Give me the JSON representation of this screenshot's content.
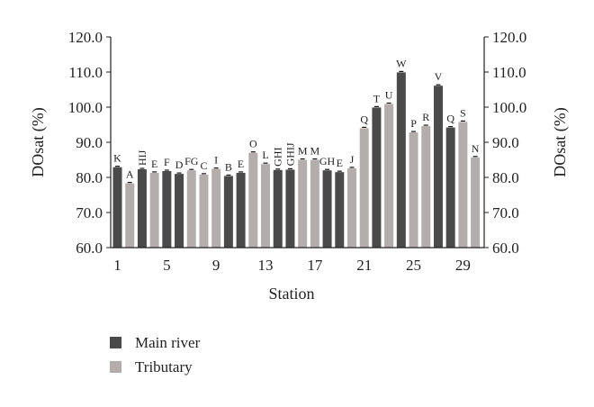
{
  "chart_data": {
    "type": "bar",
    "xlabel": "Station",
    "ylabel_left": "DOsat (%)",
    "ylabel_right": "DOsat (%)",
    "ylim": [
      60,
      120
    ],
    "yticks": [
      60,
      70,
      80,
      90,
      100,
      110,
      120
    ],
    "ytick_labels": [
      "60.0",
      "70.0",
      "80.0",
      "90.0",
      "100.0",
      "110.0",
      "120.0"
    ],
    "xtick_stations": [
      1,
      5,
      9,
      13,
      17,
      21,
      25,
      29
    ],
    "xtick_labels": [
      "1",
      "5",
      "9",
      "13",
      "17",
      "21",
      "25",
      "29"
    ],
    "grid": false,
    "legend_position": "bottom-left",
    "series": [
      {
        "name": "Main river",
        "color": "#4a4a4a"
      },
      {
        "name": "Tributary",
        "color": "#b3aeab"
      }
    ],
    "bars": [
      {
        "station": 1,
        "series": 0,
        "value": 82.9,
        "label": "K"
      },
      {
        "station": 2,
        "series": 1,
        "value": 78.3,
        "label": "A"
      },
      {
        "station": 3,
        "series": 0,
        "value": 82.3,
        "label": "HIJ"
      },
      {
        "station": 4,
        "series": 1,
        "value": 81.3,
        "label": "E"
      },
      {
        "station": 5,
        "series": 0,
        "value": 81.8,
        "label": "F"
      },
      {
        "station": 6,
        "series": 0,
        "value": 81.0,
        "label": "D"
      },
      {
        "station": 7,
        "series": 1,
        "value": 82.0,
        "label": "FG"
      },
      {
        "station": 8,
        "series": 1,
        "value": 80.8,
        "label": "C"
      },
      {
        "station": 9,
        "series": 1,
        "value": 82.4,
        "label": "I"
      },
      {
        "station": 10,
        "series": 0,
        "value": 80.4,
        "label": "B"
      },
      {
        "station": 11,
        "series": 0,
        "value": 81.3,
        "label": "E"
      },
      {
        "station": 12,
        "series": 1,
        "value": 87.0,
        "label": "O"
      },
      {
        "station": 13,
        "series": 1,
        "value": 83.8,
        "label": "L"
      },
      {
        "station": 14,
        "series": 0,
        "value": 82.1,
        "label": "GHI"
      },
      {
        "station": 15,
        "series": 0,
        "value": 82.2,
        "label": "GHIJ"
      },
      {
        "station": 16,
        "series": 1,
        "value": 85.0,
        "label": "M"
      },
      {
        "station": 17,
        "series": 1,
        "value": 85.0,
        "label": "M"
      },
      {
        "station": 18,
        "series": 0,
        "value": 82.0,
        "label": "GH"
      },
      {
        "station": 19,
        "series": 0,
        "value": 81.5,
        "label": "E"
      },
      {
        "station": 20,
        "series": 1,
        "value": 82.6,
        "label": "J"
      },
      {
        "station": 21,
        "series": 1,
        "value": 94.0,
        "label": "Q"
      },
      {
        "station": 22,
        "series": 0,
        "value": 99.9,
        "label": "T"
      },
      {
        "station": 23,
        "series": 1,
        "value": 100.9,
        "label": "U"
      },
      {
        "station": 24,
        "series": 0,
        "value": 109.9,
        "label": "W"
      },
      {
        "station": 25,
        "series": 1,
        "value": 92.8,
        "label": "P"
      },
      {
        "station": 26,
        "series": 1,
        "value": 94.6,
        "label": "R"
      },
      {
        "station": 27,
        "series": 0,
        "value": 106.1,
        "label": "V"
      },
      {
        "station": 28,
        "series": 0,
        "value": 94.2,
        "label": "Q"
      },
      {
        "station": 29,
        "series": 1,
        "value": 95.8,
        "label": "S"
      },
      {
        "station": 30,
        "series": 1,
        "value": 85.7,
        "label": "N"
      }
    ]
  }
}
